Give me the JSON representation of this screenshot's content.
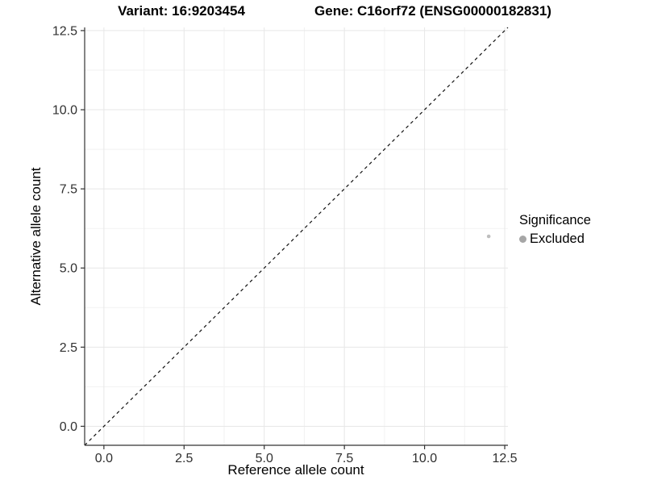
{
  "chart_data": {
    "type": "scatter",
    "title_left": "Variant: 16:9203454",
    "title_right": "Gene: C16orf72 (ENSG00000182831)",
    "xlabel": "Reference allele count",
    "ylabel": "Alternative allele count",
    "xlim": [
      -0.6,
      12.6
    ],
    "ylim": [
      -0.6,
      12.6
    ],
    "xticks": [
      0.0,
      2.5,
      5.0,
      7.5,
      10.0,
      12.5
    ],
    "yticks": [
      0.0,
      2.5,
      5.0,
      7.5,
      10.0,
      12.5
    ],
    "xtick_labels": [
      "0.0",
      "2.5",
      "5.0",
      "7.5",
      "10.0",
      "12.5"
    ],
    "ytick_labels": [
      "0.0",
      "2.5",
      "5.0",
      "7.5",
      "10.0",
      "12.5"
    ],
    "grid": true,
    "reference_line": {
      "type": "identity",
      "style": "dashed",
      "color": "#111111"
    },
    "series": [
      {
        "name": "Excluded",
        "color": "#bebebe",
        "point_radius": 2.3,
        "points": [
          {
            "x": 12,
            "y": 6
          }
        ]
      }
    ],
    "legend": {
      "title": "Significance",
      "position": "right",
      "entries": [
        {
          "label": "Excluded",
          "color": "#a6a6a6"
        }
      ]
    },
    "colors": {
      "grid_major": "#e7e7e7",
      "grid_minor": "#f2f2f2",
      "axis_line": "#333333",
      "tick_label": "#303030"
    }
  }
}
